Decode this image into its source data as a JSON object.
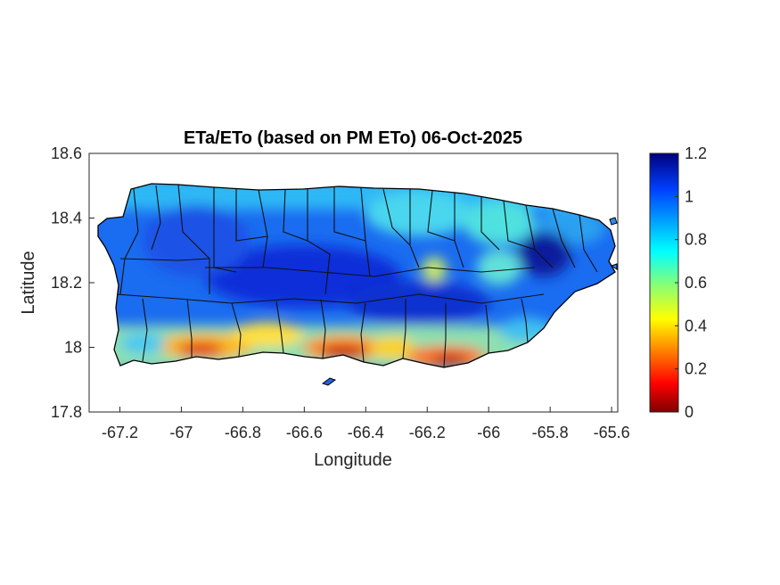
{
  "map": {
    "title": "ETa/ETo (based on PM ETo) 06-Oct-2025",
    "xlabel": "Longitude",
    "ylabel": "Latitude",
    "xlim": [
      -67.3,
      -65.58
    ],
    "ylim": [
      17.8,
      18.6
    ],
    "x_ticks": [
      "-67.2",
      "-67",
      "-66.8",
      "-66.6",
      "-66.4",
      "-66.2",
      "-66",
      "-65.8",
      "-65.6"
    ],
    "y_ticks": [
      "18.6",
      "18.4",
      "18.2",
      "18"
    ],
    "y_tick_bottom": "17.8",
    "colorbar": {
      "min": 0,
      "max": 1.2,
      "ticks": [
        "1.2",
        "1",
        "0.8",
        "0.6",
        "0.4",
        "0.2",
        "0"
      ],
      "colormap": "jet",
      "colors": [
        "#7f0000",
        "#ff0000",
        "#ffff00",
        "#00ffff",
        "#0000ff",
        "#00007f"
      ]
    },
    "region": "Puerto Rico municipalities"
  }
}
